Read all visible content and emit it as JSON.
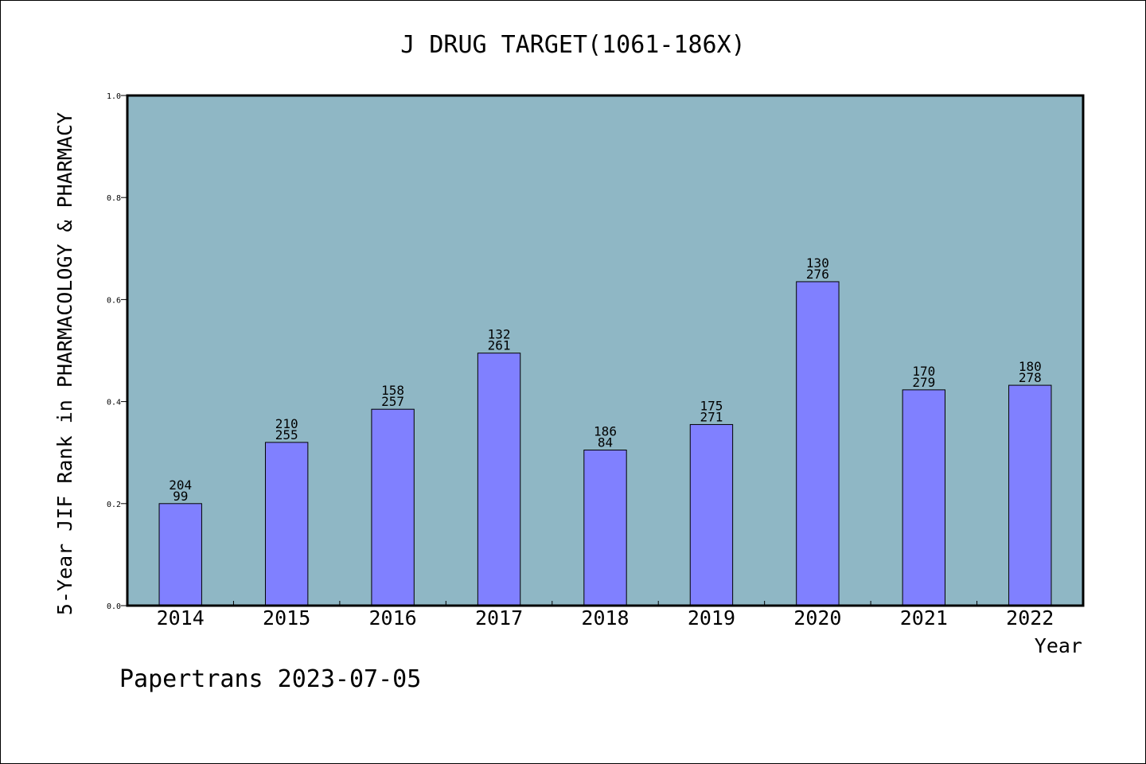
{
  "chart_data": {
    "type": "bar",
    "title": "J DRUG TARGET(1061-186X)",
    "xlabel": "Year",
    "ylabel": "5-Year JIF Rank in PHARMACOLOGY & PHARMACY",
    "categories": [
      "2014",
      "2015",
      "2016",
      "2017",
      "2018",
      "2019",
      "2020",
      "2021",
      "2022"
    ],
    "values": [
      0.2,
      0.32,
      0.385,
      0.495,
      0.305,
      0.355,
      0.635,
      0.423,
      0.432
    ],
    "rank_labels": [
      "204",
      "210",
      "158",
      "132",
      "186",
      "175",
      "130",
      "170",
      "180"
    ],
    "total_labels": [
      "99",
      "255",
      "257",
      "261",
      "84",
      "271",
      "276",
      "279",
      "278"
    ],
    "ylim": [
      0,
      1.0
    ],
    "yticks": [
      "0.0",
      "0.2",
      "0.4",
      "0.6",
      "0.8",
      "1.0"
    ],
    "grid": false,
    "legend": "none",
    "colors": {
      "plot_background": "#8fb7c5",
      "bar_fill": "#8080ff",
      "bar_edge": "#000000"
    }
  },
  "footer": "Papertrans 2023-07-05"
}
